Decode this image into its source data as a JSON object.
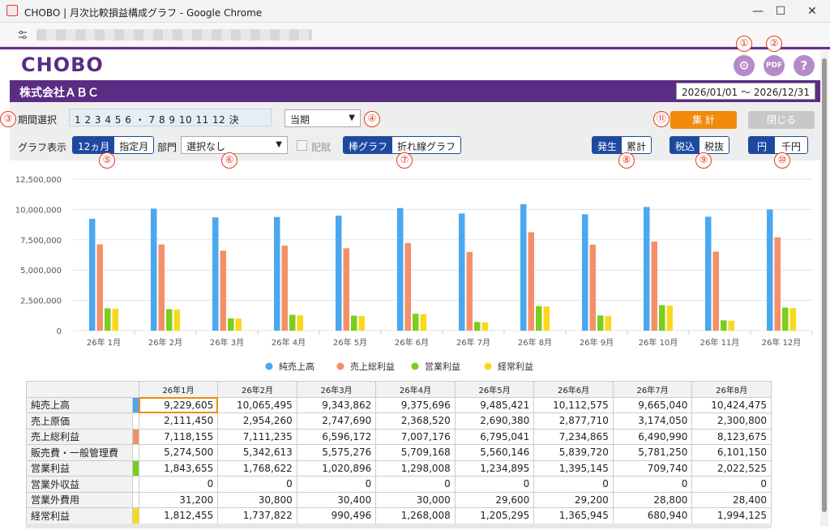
{
  "window": {
    "title": "CHOBO | 月次比較損益構成グラフ - Google Chrome",
    "min": "—",
    "max": "☐",
    "close": "✕"
  },
  "app": {
    "logo": "CHOBO",
    "company": "株式会社ＡＢＣ",
    "date_range": "2026/01/01 ～ 2026/12/31"
  },
  "callouts": [
    "①",
    "②",
    "③",
    "④",
    "⑤",
    "⑥",
    "⑦",
    "⑧",
    "⑨",
    "⑩",
    "⑪"
  ],
  "icons": {
    "settings": "gear-icon",
    "pdf": "pdf-icon",
    "help": "help-icon"
  },
  "controls": {
    "period_label": "期間選択",
    "months_text": "1 2 3 4 5 6 ・ 7 8 9 10 11 12 決",
    "term_select": "当期",
    "graph_label": "グラフ表示",
    "seg_months": [
      "12ヵ月",
      "指定月"
    ],
    "dept_label": "部門",
    "dept_select": "選択なし",
    "allocate_label": "配賦",
    "seg_graph": [
      "棒グラフ",
      "折れ線グラフ"
    ],
    "seg_mode": [
      "発生",
      "累計"
    ],
    "seg_tax": [
      "税込",
      "税抜"
    ],
    "seg_unit": [
      "円",
      "千円"
    ],
    "aggregate_btn": "集 計",
    "close_btn": "閉じる"
  },
  "colors": {
    "sales": "#4aa8f0",
    "gross": "#f49068",
    "operating": "#7ccd1e",
    "ordinary": "#f9d81d",
    "brand": "#5b2c83"
  },
  "chart_data": {
    "type": "bar",
    "categories": [
      "26年 1月",
      "26年 2月",
      "26年 3月",
      "26年 4月",
      "26年 5月",
      "26年 6月",
      "26年 7月",
      "26年 8月",
      "26年 9月",
      "26年 10月",
      "26年 11月",
      "26年 12月"
    ],
    "y_ticks": [
      "12,500,000",
      "10,000,000",
      "7,500,000",
      "5,000,000",
      "2,500,000",
      "0"
    ],
    "ylim": [
      0,
      12500000
    ],
    "series": [
      {
        "name": "純売上高",
        "values": [
          9229605,
          10065495,
          9343862,
          9375696,
          9485421,
          10112575,
          9665040,
          10424475,
          9600000,
          10200000,
          9400000,
          10000000
        ]
      },
      {
        "name": "売上総利益",
        "values": [
          7118155,
          7111235,
          6596172,
          7007176,
          6795041,
          7234865,
          6490990,
          8123675,
          7100000,
          7350000,
          6520000,
          7700000
        ]
      },
      {
        "name": "営業利益",
        "values": [
          1843655,
          1768622,
          1020896,
          1298008,
          1234895,
          1395145,
          709740,
          2022525,
          1250000,
          2100000,
          850000,
          1900000
        ]
      },
      {
        "name": "経常利益",
        "values": [
          1812455,
          1737822,
          990496,
          1268008,
          1205295,
          1365945,
          680940,
          1994125,
          1220000,
          2050000,
          820000,
          1860000
        ]
      }
    ],
    "legend_position": "bottom",
    "grid": true
  },
  "table": {
    "headers": [
      "26年1月",
      "26年2月",
      "26年3月",
      "26年4月",
      "26年5月",
      "26年6月",
      "26年7月",
      "26年8月"
    ],
    "rows": [
      {
        "label": "純売上高",
        "marker": "#4aa8f0",
        "values": [
          "9,229,605",
          "10,065,495",
          "9,343,862",
          "9,375,696",
          "9,485,421",
          "10,112,575",
          "9,665,040",
          "10,424,475"
        ]
      },
      {
        "label": "売上原価",
        "marker": "",
        "values": [
          "2,111,450",
          "2,954,260",
          "2,747,690",
          "2,368,520",
          "2,690,380",
          "2,877,710",
          "3,174,050",
          "2,300,800"
        ]
      },
      {
        "label": "売上総利益",
        "marker": "#f49068",
        "values": [
          "7,118,155",
          "7,111,235",
          "6,596,172",
          "7,007,176",
          "6,795,041",
          "7,234,865",
          "6,490,990",
          "8,123,675"
        ]
      },
      {
        "label": "販売費・一般管理費",
        "marker": "",
        "values": [
          "5,274,500",
          "5,342,613",
          "5,575,276",
          "5,709,168",
          "5,560,146",
          "5,839,720",
          "5,781,250",
          "6,101,150"
        ]
      },
      {
        "label": "営業利益",
        "marker": "#7ccd1e",
        "values": [
          "1,843,655",
          "1,768,622",
          "1,020,896",
          "1,298,008",
          "1,234,895",
          "1,395,145",
          "709,740",
          "2,022,525"
        ]
      },
      {
        "label": "営業外収益",
        "marker": "",
        "values": [
          "0",
          "0",
          "0",
          "0",
          "0",
          "0",
          "0",
          "0"
        ]
      },
      {
        "label": "営業外費用",
        "marker": "",
        "values": [
          "31,200",
          "30,800",
          "30,400",
          "30,000",
          "29,600",
          "29,200",
          "28,800",
          "28,400"
        ]
      },
      {
        "label": "経常利益",
        "marker": "#f9d81d",
        "values": [
          "1,812,455",
          "1,737,822",
          "990,496",
          "1,268,008",
          "1,205,295",
          "1,365,945",
          "680,940",
          "1,994,125"
        ]
      }
    ]
  }
}
